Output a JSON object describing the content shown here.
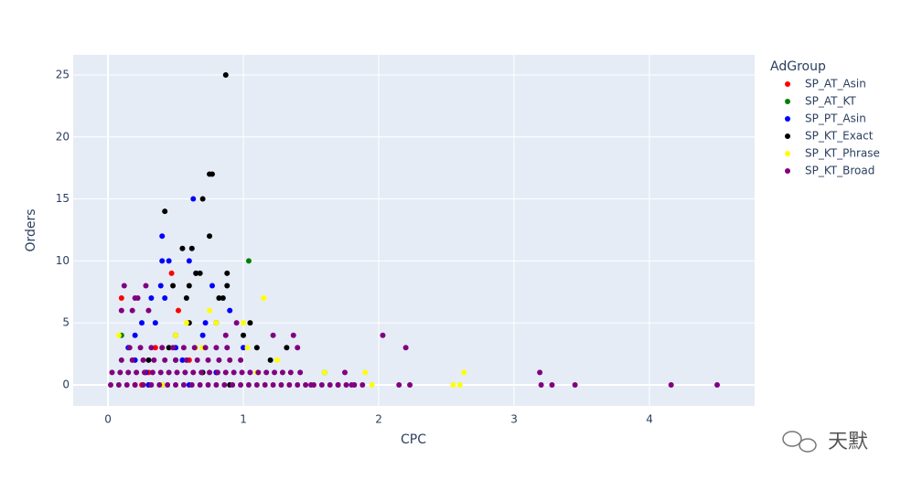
{
  "chart_data": {
    "type": "scatter",
    "xlabel": "CPC",
    "ylabel": "Orders",
    "legend_title": "AdGroup",
    "legend_position": "right",
    "xlim": [
      -0.257,
      4.777
    ],
    "ylim": [
      -1.7,
      26.62
    ],
    "xticks": [
      0,
      1,
      2,
      3,
      4
    ],
    "yticks": [
      0,
      5,
      10,
      15,
      20,
      25
    ],
    "grid": true,
    "watermark": "天默",
    "series": [
      {
        "name": "SP_AT_Asin",
        "color": "#ff0000",
        "x": [
          0.1,
          0.47,
          0.52,
          0.3,
          0.2,
          0.35,
          0.6,
          0.25
        ],
        "values": [
          7,
          9,
          6,
          1,
          0,
          3,
          2,
          0
        ]
      },
      {
        "name": "SP_AT_KT",
        "color": "#008000",
        "x": [
          1.04,
          0.1,
          1.6,
          0.5,
          0.3,
          0.8
        ],
        "values": [
          10,
          4,
          1,
          2,
          0,
          1
        ]
      },
      {
        "name": "SP_PT_Asin",
        "color": "#0000ff",
        "x": [
          0.63,
          0.4,
          0.4,
          0.45,
          0.6,
          0.65,
          0.39,
          0.42,
          0.32,
          0.77,
          0.72,
          0.9,
          0.35,
          0.25,
          0.2,
          0.15,
          0.5,
          0.55,
          0.28,
          0.3,
          0.6,
          0.8,
          1.0,
          0.2,
          0.7
        ],
        "values": [
          15,
          12,
          10,
          10,
          10,
          9,
          8,
          7,
          7,
          8,
          5,
          6,
          5,
          5,
          4,
          3,
          3,
          2,
          1,
          0,
          0,
          1,
          3,
          2,
          4
        ]
      },
      {
        "name": "SP_KT_Exact",
        "color": "#000000",
        "x": [
          0.87,
          0.75,
          0.77,
          0.42,
          0.7,
          0.75,
          0.55,
          0.62,
          0.88,
          0.65,
          0.68,
          0.48,
          0.6,
          0.88,
          0.82,
          0.85,
          0.58,
          0.6,
          0.8,
          0.5,
          1.0,
          1.32,
          1.1,
          0.45,
          0.3,
          1.2,
          0.7,
          0.9,
          0.4,
          1.05
        ],
        "values": [
          25,
          17,
          17,
          14,
          15,
          12,
          11,
          11,
          9,
          9,
          9,
          8,
          8,
          8,
          7,
          7,
          7,
          5,
          5,
          4,
          4,
          3,
          3,
          3,
          2,
          2,
          1,
          0,
          0,
          5
        ]
      },
      {
        "name": "SP_KT_Phrase",
        "color": "#ffff00",
        "x": [
          1.15,
          0.75,
          0.58,
          0.8,
          1.0,
          0.08,
          0.65,
          0.7,
          0.5,
          1.25,
          2.63,
          2.55,
          2.6,
          1.95,
          1.9,
          1.6,
          1.1,
          0.4,
          0.9,
          1.03
        ],
        "values": [
          7,
          6,
          5,
          5,
          5,
          4,
          3,
          3,
          4,
          2,
          1,
          0,
          0,
          0,
          1,
          1,
          1,
          0,
          2,
          3
        ]
      },
      {
        "name": "SP_KT_Broad",
        "color": "#800080",
        "x": [
          0.02,
          0.08,
          0.14,
          0.2,
          0.26,
          0.32,
          0.38,
          0.44,
          0.5,
          0.56,
          0.62,
          0.68,
          0.74,
          0.8,
          0.86,
          0.92,
          0.98,
          1.04,
          1.1,
          1.16,
          1.22,
          1.28,
          1.34,
          1.4,
          1.46,
          1.52,
          1.58,
          1.64,
          1.7,
          1.76,
          1.82,
          1.88,
          0.03,
          0.09,
          0.15,
          0.21,
          0.27,
          0.33,
          0.39,
          0.45,
          0.51,
          0.57,
          0.63,
          0.69,
          0.75,
          0.81,
          0.87,
          0.93,
          0.99,
          1.05,
          1.11,
          1.17,
          1.23,
          1.29,
          1.35,
          0.1,
          0.18,
          0.26,
          0.34,
          0.42,
          0.5,
          0.58,
          0.66,
          0.74,
          0.82,
          0.9,
          0.98,
          0.16,
          0.24,
          0.32,
          0.4,
          0.48,
          0.56,
          0.64,
          0.72,
          0.8,
          0.88,
          4.5,
          4.16,
          3.45,
          3.28,
          3.2,
          3.19,
          2.23,
          2.15,
          2.03,
          2.2,
          1.4,
          1.37,
          1.8,
          1.22,
          0.12,
          0.28,
          0.2,
          0.22,
          0.1,
          0.18,
          0.3,
          0.95,
          0.87,
          1.42,
          1.75,
          1.5,
          1.7
        ],
        "values": [
          0,
          0,
          0,
          0,
          0,
          0,
          0,
          0,
          0,
          0,
          0,
          0,
          0,
          0,
          0,
          0,
          0,
          0,
          0,
          0,
          0,
          0,
          0,
          0,
          0,
          0,
          0,
          0,
          0,
          0,
          0,
          0,
          1,
          1,
          1,
          1,
          1,
          1,
          1,
          1,
          1,
          1,
          1,
          1,
          1,
          1,
          1,
          1,
          1,
          1,
          1,
          1,
          1,
          1,
          1,
          2,
          2,
          2,
          2,
          2,
          2,
          2,
          2,
          2,
          2,
          2,
          2,
          3,
          3,
          3,
          3,
          3,
          3,
          3,
          3,
          3,
          3,
          0,
          0,
          0,
          0,
          0,
          1,
          0,
          0,
          4,
          3,
          3,
          4,
          0,
          4,
          8,
          8,
          7,
          7,
          6,
          6,
          6,
          5,
          4,
          1,
          1,
          0,
          0
        ]
      }
    ]
  }
}
